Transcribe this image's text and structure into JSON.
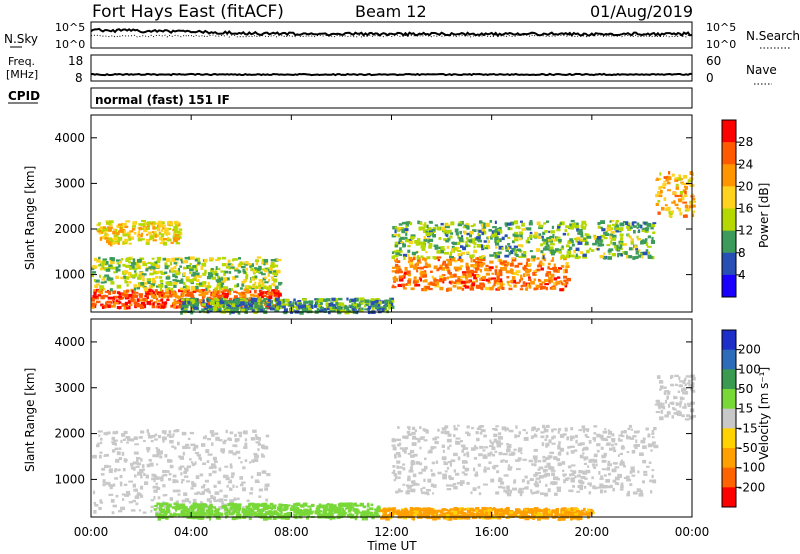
{
  "header": {
    "station": "Fort Hays East (fitACF)",
    "beam": "Beam 12",
    "date": "01/Aug/2019"
  },
  "panels": {
    "nsky": {
      "label": "N.Sky",
      "ticks": [
        "10^5",
        "10^0"
      ]
    },
    "nsearch": {
      "label": "N.Search",
      "ticks": [
        "10^5",
        "10^0"
      ]
    },
    "freq": {
      "label_top": "Freq.",
      "label_bottom": "[MHz]",
      "ticks": [
        "18",
        "8"
      ]
    },
    "nave": {
      "label": "Nave",
      "ticks": [
        "60",
        "0"
      ]
    },
    "cpid": {
      "label": "CPID",
      "mode": "normal (fast) 151 IF"
    }
  },
  "axes": {
    "xlabel": "Time UT",
    "xticks": [
      "00:00",
      "04:00",
      "08:00",
      "12:00",
      "16:00",
      "20:00",
      "00:00"
    ],
    "ylabel": "Slant Range [km]",
    "yticks": [
      "4000",
      "3000",
      "2000",
      "1000"
    ]
  },
  "power_scale": {
    "label": "Power [dB]",
    "ticks": [
      "28",
      "24",
      "20",
      "16",
      "12",
      "8",
      "4"
    ],
    "colors": [
      "#ff0000",
      "#ff5a00",
      "#ff9600",
      "#ffd21e",
      "#b4d800",
      "#3c9a5a",
      "#2850b4",
      "#1a00ff"
    ]
  },
  "velocity_scale": {
    "label": "Velocity [m s⁻¹]",
    "ticks": [
      "200",
      "100",
      "50",
      "15",
      "-15",
      "-50",
      "-100",
      "-200"
    ],
    "colors": [
      "#1e2ec8",
      "#2c6cb8",
      "#3a9a50",
      "#78d838",
      "#c8c8c8",
      "#ffd200",
      "#ffa000",
      "#ff6400",
      "#ff0000"
    ]
  },
  "chart_data": [
    {
      "type": "line",
      "title": "N.Sky / N.Search",
      "x_range_hours": [
        0,
        24
      ],
      "y_scale": "log",
      "ylim": [
        1,
        100000
      ]
    },
    {
      "type": "line",
      "title": "Freq. [MHz] / Nave",
      "x_range_hours": [
        0,
        24
      ],
      "ylim": [
        8,
        18
      ],
      "freq_value_mhz": 10.5
    },
    {
      "type": "heatmap",
      "title": "Power [dB]",
      "xlabel": "Time UT",
      "ylabel": "Slant Range [km]",
      "x_range_hours": [
        0,
        24
      ],
      "ylim": [
        180,
        4500
      ],
      "zlim": [
        0,
        30
      ],
      "regions": [
        {
          "t0": 0.0,
          "t1": 7.5,
          "r_low": 300,
          "r_high": 700,
          "level": 26
        },
        {
          "t0": 0.0,
          "t1": 7.5,
          "r_low": 700,
          "r_high": 1400,
          "level": 14
        },
        {
          "t0": 0.2,
          "t1": 3.5,
          "r_low": 1700,
          "r_high": 2200,
          "level": 18
        },
        {
          "t0": 3.5,
          "t1": 12.0,
          "r_low": 200,
          "r_high": 500,
          "level": 10
        },
        {
          "t0": 12.0,
          "t1": 19.0,
          "r_low": 700,
          "r_high": 1400,
          "level": 24
        },
        {
          "t0": 12.0,
          "t1": 22.5,
          "r_low": 1400,
          "r_high": 2200,
          "level": 12
        },
        {
          "t0": 22.5,
          "t1": 24.0,
          "r_low": 2300,
          "r_high": 3300,
          "level": 20
        }
      ]
    },
    {
      "type": "heatmap",
      "title": "Velocity [m s⁻¹]",
      "xlabel": "Time UT",
      "ylabel": "Slant Range [km]",
      "x_range_hours": [
        0,
        24
      ],
      "ylim": [
        180,
        4500
      ],
      "zlim": [
        -200,
        200
      ],
      "regions": [
        {
          "t0": 0.0,
          "t1": 7.0,
          "r_low": 300,
          "r_high": 2100,
          "level": 0
        },
        {
          "t0": 2.5,
          "t1": 11.5,
          "r_low": 180,
          "r_high": 500,
          "level": 30
        },
        {
          "t0": 11.5,
          "t1": 20.0,
          "r_low": 180,
          "r_high": 400,
          "level": -60
        },
        {
          "t0": 12.0,
          "t1": 22.5,
          "r_low": 700,
          "r_high": 2200,
          "level": 0
        },
        {
          "t0": 22.5,
          "t1": 24.0,
          "r_low": 2300,
          "r_high": 3300,
          "level": 0
        }
      ]
    }
  ]
}
